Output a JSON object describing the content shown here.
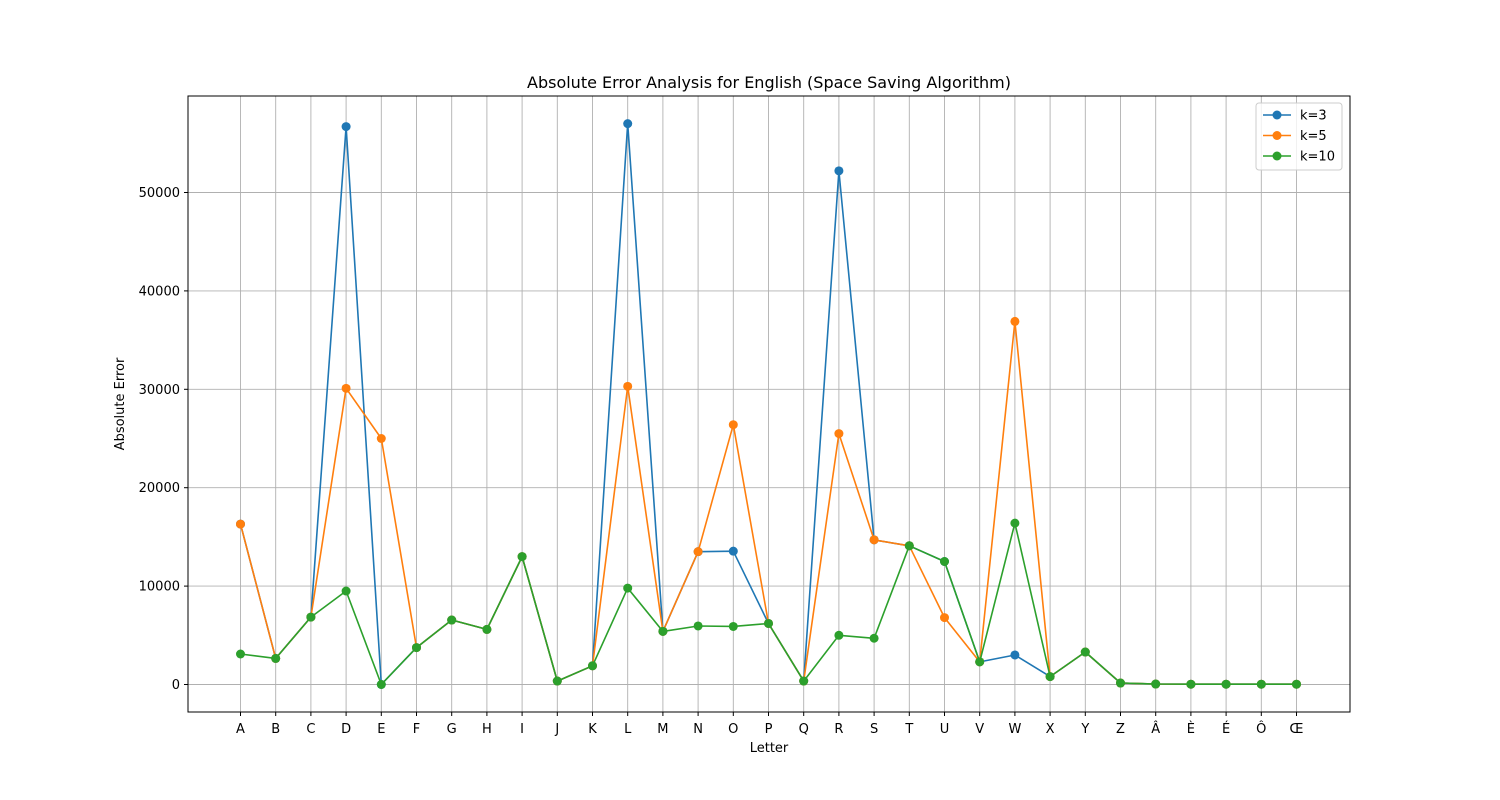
{
  "chart_data": {
    "type": "line",
    "title": "Absolute Error Analysis for English (Space Saving Algorithm)",
    "xlabel": "Letter",
    "ylabel": "Absolute Error",
    "categories": [
      "A",
      "B",
      "C",
      "D",
      "E",
      "F",
      "G",
      "H",
      "I",
      "J",
      "K",
      "L",
      "M",
      "N",
      "O",
      "P",
      "Q",
      "R",
      "S",
      "T",
      "U",
      "V",
      "W",
      "X",
      "Y",
      "Z",
      "Â",
      "È",
      "É",
      "Ô",
      "Œ"
    ],
    "ylim": [
      -2900,
      59800
    ],
    "yticks": [
      0,
      10000,
      20000,
      30000,
      40000,
      50000
    ],
    "grid": true,
    "legend_position": "top-right",
    "series": [
      {
        "name": "k=3",
        "color": "#1f77b4",
        "values": [
          16300,
          2650,
          6850,
          56700,
          0,
          3750,
          6550,
          5600,
          13000,
          350,
          1900,
          57000,
          5400,
          13500,
          13550,
          6200,
          350,
          52200,
          14700,
          14100,
          12500,
          2300,
          3000,
          800,
          3300,
          150,
          50,
          30,
          30,
          30,
          30
        ]
      },
      {
        "name": "k=5",
        "color": "#ff7f0e",
        "values": [
          16300,
          2650,
          6850,
          30100,
          25000,
          3750,
          6550,
          5600,
          13000,
          350,
          1900,
          30300,
          5400,
          13500,
          26400,
          6200,
          350,
          25500,
          14700,
          14100,
          6800,
          2300,
          36900,
          800,
          3300,
          150,
          50,
          30,
          30,
          30,
          30
        ]
      },
      {
        "name": "k=10",
        "color": "#2ca02c",
        "values": [
          3100,
          2650,
          6850,
          9500,
          0,
          3750,
          6550,
          5600,
          13000,
          350,
          1900,
          9800,
          5400,
          5950,
          5900,
          6200,
          350,
          5000,
          4700,
          14100,
          12500,
          2300,
          16400,
          800,
          3300,
          150,
          50,
          30,
          30,
          30,
          30
        ]
      }
    ]
  }
}
